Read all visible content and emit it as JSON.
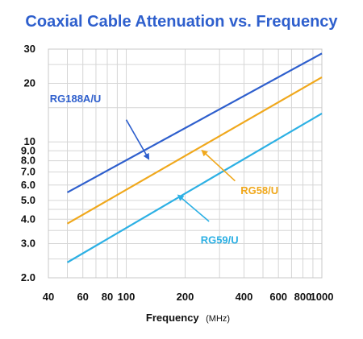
{
  "chart_data": {
    "type": "line",
    "title": "Coaxial Cable Attenuation vs. Frequency",
    "xlabel": "Frequency",
    "xlabel_unit": "(MHz)",
    "ylabel": "",
    "x_scale": "log",
    "y_scale": "log",
    "xlim": [
      40,
      1000
    ],
    "ylim": [
      2.0,
      30
    ],
    "grid": true,
    "x_ticks": [
      {
        "value": 40,
        "label": "40"
      },
      {
        "value": 60,
        "label": "60"
      },
      {
        "value": 80,
        "label": "80"
      },
      {
        "value": 100,
        "label": "100"
      },
      {
        "value": 200,
        "label": "200"
      },
      {
        "value": 400,
        "label": "400"
      },
      {
        "value": 600,
        "label": "600"
      },
      {
        "value": 800,
        "label": "800"
      },
      {
        "value": 1000,
        "label": "1000"
      }
    ],
    "y_ticks": [
      {
        "value": 2.0,
        "label": "2.0"
      },
      {
        "value": 3.0,
        "label": "3.0"
      },
      {
        "value": 4.0,
        "label": "4.0"
      },
      {
        "value": 5.0,
        "label": "5.0"
      },
      {
        "value": 6.0,
        "label": "6.0"
      },
      {
        "value": 7.0,
        "label": "7.0"
      },
      {
        "value": 8.0,
        "label": "8.0"
      },
      {
        "value": 9.0,
        "label": "9.0"
      },
      {
        "value": 10,
        "label": "10"
      },
      {
        "value": 20,
        "label": "20"
      },
      {
        "value": 30,
        "label": "30"
      }
    ],
    "x_minor_grid": [
      50,
      70,
      90,
      300,
      500,
      700,
      900
    ],
    "y_minor_grid": [
      2.5,
      3.5,
      4.5,
      15,
      25
    ],
    "series": [
      {
        "name": "RG188A/U",
        "color": "#2e5fcd",
        "x": [
          50,
          1000
        ],
        "y": [
          5.5,
          28.5
        ],
        "label_at": [
          55,
          16
        ],
        "arrow_from": [
          100,
          13
        ],
        "arrow_to": [
          130,
          8.2
        ]
      },
      {
        "name": "RG58/U",
        "color": "#f0a81c",
        "x": [
          50,
          1000
        ],
        "y": [
          3.8,
          21.5
        ],
        "label_at": [
          480,
          5.4
        ],
        "arrow_from": [
          360,
          6.3
        ],
        "arrow_to": [
          245,
          9.0
        ]
      },
      {
        "name": "RG59/U",
        "color": "#2cb0e4",
        "x": [
          50,
          1000
        ],
        "y": [
          2.4,
          14.0
        ],
        "label_at": [
          300,
          3.0
        ],
        "arrow_from": [
          265,
          3.9
        ],
        "arrow_to": [
          185,
          5.3
        ]
      }
    ]
  }
}
